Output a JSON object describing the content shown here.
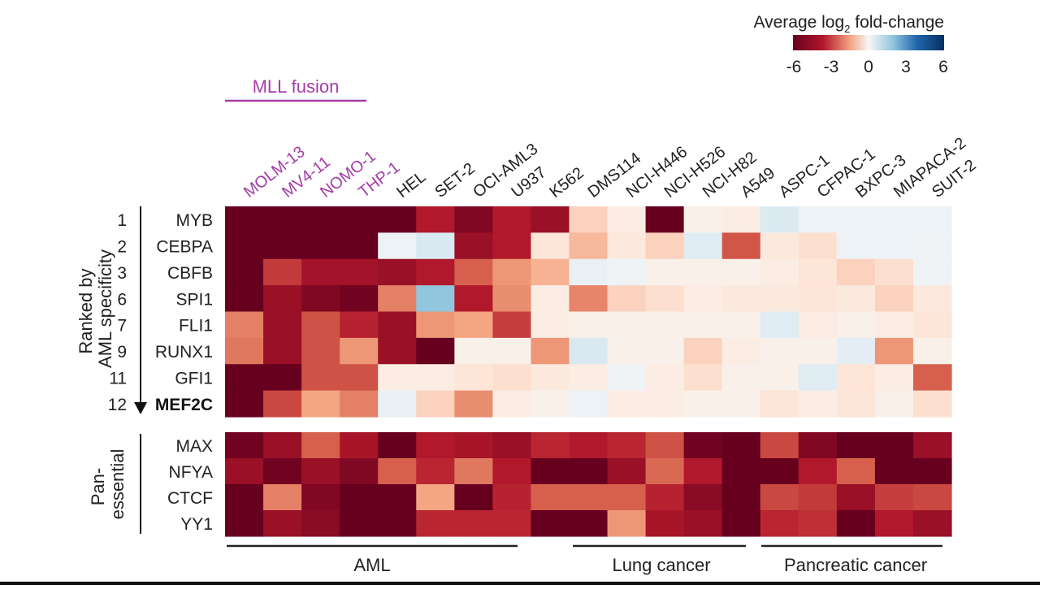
{
  "chart_data": {
    "type": "heatmap",
    "title": "",
    "colorbar": {
      "title": "Average log₂ fold-change",
      "title_prefix": "Average log",
      "title_subscript": "2",
      "title_suffix": " fold-change",
      "ticks": [
        "-6",
        "-3",
        "0",
        "3",
        "6"
      ],
      "range": [
        -6,
        6
      ],
      "colors": {
        "min": "#67001f",
        "mid": "#f7f7f7",
        "max": "#053061"
      }
    },
    "highlight_group": {
      "label": "MLL fusion",
      "columns": [
        "MOLM-13",
        "MV4-11",
        "NOMO-1",
        "THP-1"
      ],
      "color": "#a63ca8"
    },
    "column_groups": [
      {
        "label": "AML",
        "columns": [
          "MOLM-13",
          "MV4-11",
          "NOMO-1",
          "THP-1",
          "HEL",
          "SET-2",
          "OCI-AML3",
          "U937",
          "K562"
        ]
      },
      {
        "label": "Lung cancer",
        "columns": [
          "DMS114",
          "NCI-H446",
          "NCI-H526",
          "NCI-H82",
          "A549"
        ]
      },
      {
        "label": "Pancreatic cancer",
        "columns": [
          "ASPC-1",
          "CFPAC-1",
          "BXPC-3",
          "MIAPACA-2",
          "SUIT-2"
        ]
      }
    ],
    "columns": [
      "MOLM-13",
      "MV4-11",
      "NOMO-1",
      "THP-1",
      "HEL",
      "SET-2",
      "OCI-AML3",
      "U937",
      "K562",
      "DMS114",
      "NCI-H446",
      "NCI-H526",
      "NCI-H82",
      "A549",
      "ASPC-1",
      "CFPAC-1",
      "BXPC-3",
      "MIAPACA-2",
      "SUIT-2"
    ],
    "row_sections": [
      {
        "label": "Ranked by AML specificity",
        "label_lines": [
          "Ranked by",
          "AML specificity"
        ],
        "rows": [
          {
            "rank": "1",
            "gene": "MYB",
            "values": [
              -6,
              -6,
              -6,
              -6,
              -6,
              -4.5,
              -5.5,
              -4.5,
              -5,
              -0.8,
              -0.3,
              -6,
              -0.2,
              -0.3,
              0.7,
              0.3,
              0.3,
              0.3,
              0.3
            ]
          },
          {
            "rank": "2",
            "gene": "CEBPA",
            "values": [
              -6,
              -6,
              -6,
              -6,
              0.3,
              0.8,
              -5,
              -4.5,
              -0.5,
              -1.2,
              -0.4,
              -0.8,
              0.6,
              -3.2,
              -0.4,
              -0.6,
              0.3,
              0.3,
              0.2
            ]
          },
          {
            "rank": "3",
            "gene": "CBFB",
            "values": [
              -6,
              -3.8,
              -4.8,
              -4.8,
              -5,
              -4.5,
              -3,
              -1.8,
              -1.3,
              0.4,
              0.2,
              -0.2,
              -0.2,
              -0.2,
              -0.3,
              -0.5,
              -0.8,
              -0.6,
              0.2
            ]
          },
          {
            "rank": "6",
            "gene": "SPI1",
            "values": [
              -6,
              -5,
              -5.5,
              -5.8,
              -2.3,
              2,
              -4.5,
              -2,
              -0.3,
              -2.2,
              -0.8,
              -0.6,
              -0.3,
              -0.4,
              -0.4,
              -0.5,
              -0.4,
              -0.8,
              -0.4
            ]
          },
          {
            "rank": "7",
            "gene": "FLI1",
            "values": [
              -2.3,
              -5,
              -3.3,
              -4.3,
              -5,
              -1.8,
              -1.5,
              -3.7,
              -0.3,
              -0.2,
              -0.2,
              -0.2,
              -0.2,
              -0.2,
              0.6,
              -0.3,
              -0.2,
              -0.3,
              -0.5
            ]
          },
          {
            "rank": "9",
            "gene": "RUNX1",
            "values": [
              -2.5,
              -5,
              -3.3,
              -1.8,
              -5,
              -6,
              -0.2,
              -0.2,
              -1.8,
              0.8,
              -0.2,
              -0.2,
              -0.8,
              -0.3,
              -0.2,
              -0.2,
              0.5,
              -1.8,
              -0.2
            ]
          },
          {
            "rank": "11",
            "gene": "GFI1",
            "values": [
              -6,
              -6,
              -3.3,
              -3.3,
              -0.3,
              -0.3,
              -0.5,
              -0.6,
              -0.4,
              -0.3,
              0.2,
              -0.3,
              -0.6,
              -0.2,
              -0.2,
              0.6,
              -0.5,
              -0.3,
              -3
            ]
          },
          {
            "rank": "12",
            "gene": "MEF2C",
            "values": [
              -6,
              -3.5,
              -1.5,
              -2.3,
              0.4,
              -0.8,
              -2,
              -0.3,
              -0.2,
              0.3,
              -0.3,
              -0.3,
              -0.2,
              -0.2,
              -0.5,
              -0.3,
              -0.5,
              -0.2,
              -0.6
            ],
            "bold": true,
            "arrow": true
          }
        ]
      },
      {
        "label": "Pan-essential",
        "label_lines": [
          "Pan-",
          "essential"
        ],
        "rows": [
          {
            "rank": "",
            "gene": "MAX",
            "values": [
              -5.8,
              -5,
              -3,
              -4.7,
              -6,
              -4.5,
              -4.7,
              -5,
              -4.2,
              -4.5,
              -4.2,
              -3.3,
              -5.8,
              -6,
              -3.5,
              -5.5,
              -6,
              -6,
              -5
            ]
          },
          {
            "rank": "",
            "gene": "NFYA",
            "values": [
              -5,
              -5.8,
              -5,
              -5.5,
              -3,
              -4.2,
              -2.5,
              -4.5,
              -6,
              -6,
              -5,
              -2.8,
              -4.5,
              -6,
              -6,
              -4.5,
              -3,
              -6,
              -6
            ]
          },
          {
            "rank": "",
            "gene": "CTCF",
            "values": [
              -6,
              -2.3,
              -5.5,
              -6,
              -6,
              -1.5,
              -6,
              -4.3,
              -3,
              -3,
              -3,
              -4.3,
              -5.3,
              -6,
              -3.5,
              -3.8,
              -5,
              -3.7,
              -3.5
            ]
          },
          {
            "rank": "",
            "gene": "YY1",
            "values": [
              -6,
              -5,
              -5.3,
              -6,
              -6,
              -4.2,
              -4.2,
              -4.2,
              -6,
              -6,
              -1.8,
              -4.7,
              -5,
              -6,
              -4.2,
              -4,
              -6,
              -4.5,
              -5
            ]
          }
        ]
      }
    ]
  }
}
